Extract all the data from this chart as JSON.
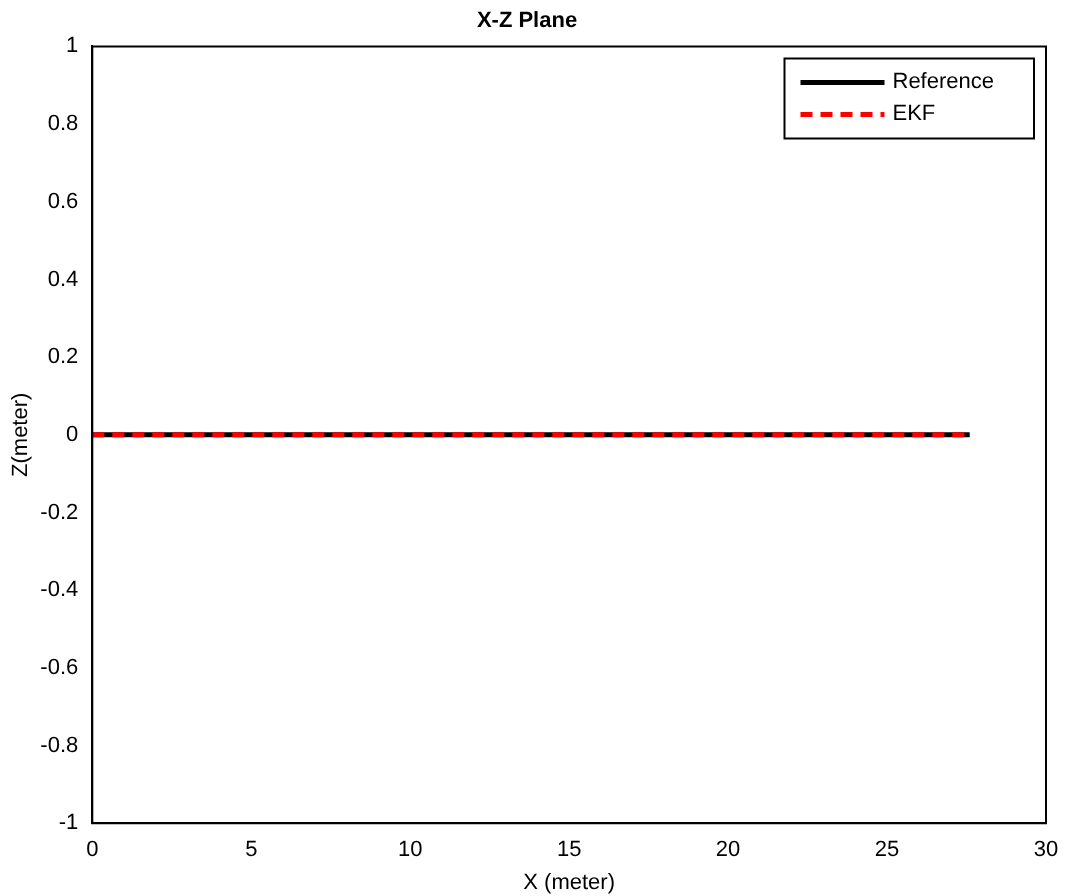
{
  "chart_data": {
    "type": "line",
    "title": "X-Z Plane",
    "xlabel": "X (meter)",
    "ylabel": "Z(meter)",
    "x": [
      0,
      27.6
    ],
    "series": [
      {
        "name": "Reference",
        "color": "#000000",
        "values": [
          0,
          0
        ],
        "line_style": "solid"
      },
      {
        "name": "EKF",
        "color": "#ff0000",
        "values": [
          0,
          0
        ],
        "line_style": "dashed"
      }
    ],
    "xlim": [
      0,
      30
    ],
    "xticks": [
      0,
      5,
      10,
      15,
      20,
      25,
      30
    ],
    "ylim": [
      -1,
      1
    ],
    "yticks": [
      -1,
      -0.8,
      -0.6,
      -0.4,
      -0.2,
      0,
      0.2,
      0.4,
      0.6,
      0.8,
      1
    ],
    "grid": false,
    "legend": "top right",
    "marker": "none"
  }
}
